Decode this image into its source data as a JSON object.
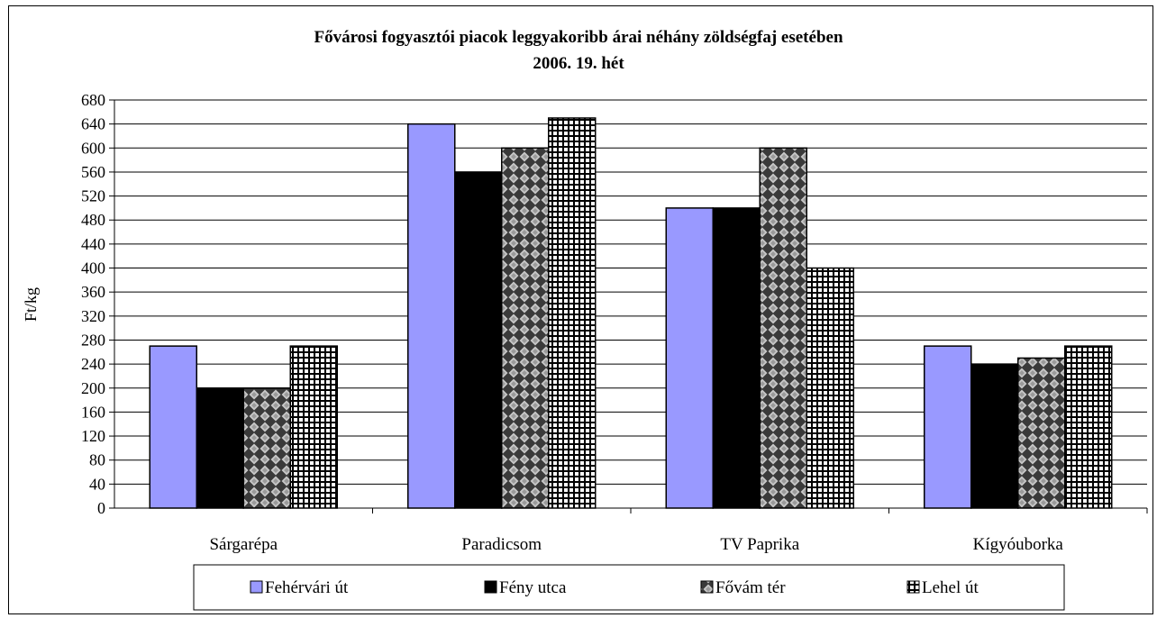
{
  "chart_data": {
    "type": "bar",
    "title": "Fővárosi fogyasztói piacok leggyakoribb árai néhány zöldségfaj esetében",
    "subtitle": "2006. 19. hét",
    "ylabel": "Ft/kg",
    "xlabel": "",
    "ylim": [
      0,
      680
    ],
    "ytick_step": 40,
    "grid": true,
    "legend_position": "bottom",
    "categories": [
      "Sárgarépa",
      "Paradicsom",
      "TV Paprika",
      "Kígyóuborka"
    ],
    "series": [
      {
        "name": "Fehérvári út",
        "values": [
          270,
          640,
          500,
          270
        ],
        "color": "#9999ff",
        "pattern": "solid"
      },
      {
        "name": "Fény utca",
        "values": [
          200,
          560,
          500,
          240
        ],
        "color": "#000000",
        "pattern": "solid"
      },
      {
        "name": "Fővám tér",
        "values": [
          200,
          600,
          600,
          250
        ],
        "color": "#333333",
        "pattern": "diamond"
      },
      {
        "name": "Lehel út",
        "values": [
          270,
          650,
          400,
          270
        ],
        "color": "#000000",
        "pattern": "grid"
      }
    ]
  }
}
